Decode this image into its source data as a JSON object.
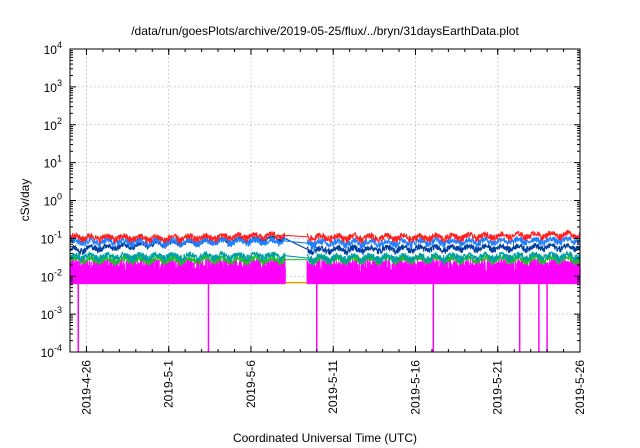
{
  "chart_data": {
    "type": "line",
    "title": "/data/run/goesPlots/archive/2019-05-25/flux/../bryn/31daysEarthData.plot",
    "xlabel": "Coordinated Universal Time (UTC)",
    "ylabel": "cSv/day",
    "yscale": "log",
    "ylim": [
      0.0001,
      10000
    ],
    "xlim": [
      "2019-04-25",
      "2019-05-26"
    ],
    "grid": true,
    "legend": "none",
    "y_ticks": [
      {
        "base": "10",
        "exp": "-4",
        "value": 0.0001
      },
      {
        "base": "10",
        "exp": "-3",
        "value": 0.001
      },
      {
        "base": "10",
        "exp": "-2",
        "value": 0.01
      },
      {
        "base": "10",
        "exp": "-1",
        "value": 0.1
      },
      {
        "base": "10",
        "exp": "0",
        "value": 1
      },
      {
        "base": "10",
        "exp": "1",
        "value": 10
      },
      {
        "base": "10",
        "exp": "2",
        "value": 100
      },
      {
        "base": "10",
        "exp": "3",
        "value": 1000
      },
      {
        "base": "10",
        "exp": "4",
        "value": 10000
      }
    ],
    "x_ticks": [
      {
        "label": "2019-4-26",
        "date": "2019-04-26"
      },
      {
        "label": "2019-5-1",
        "date": "2019-05-01"
      },
      {
        "label": "2019-5-6",
        "date": "2019-05-06"
      },
      {
        "label": "2019-5-11",
        "date": "2019-05-11"
      },
      {
        "label": "2019-5-16",
        "date": "2019-05-16"
      },
      {
        "label": "2019-5-21",
        "date": "2019-05-21"
      },
      {
        "label": "2019-5-26",
        "date": "2019-05-26"
      }
    ],
    "data_gap": [
      "2019-05-08T02:00",
      "2019-05-09T10:00"
    ],
    "series": [
      {
        "color": "#ff2020",
        "baseline": 0.105,
        "amplitude": 0.025,
        "points": [
          [
            "2019-04-25T00:00",
            0.11
          ],
          [
            "2019-05-01T00:00",
            0.1
          ],
          [
            "2019-05-08T01:00",
            0.12
          ],
          [
            "2019-05-09T11:00",
            0.11
          ],
          [
            "2019-05-16T00:00",
            0.105
          ],
          [
            "2019-05-26T00:00",
            0.13
          ]
        ]
      },
      {
        "color": "#2080ff",
        "baseline": 0.075,
        "amplitude": 0.02,
        "points": [
          [
            "2019-04-25T00:00",
            0.08
          ],
          [
            "2019-05-08T01:00",
            0.085
          ],
          [
            "2019-05-09T11:00",
            0.075
          ],
          [
            "2019-05-26T00:00",
            0.09
          ]
        ]
      },
      {
        "color": "#0040a0",
        "baseline": 0.05,
        "amplitude": 0.012,
        "points": [
          [
            "2019-04-25T00:00",
            0.05
          ],
          [
            "2019-05-08T01:00",
            0.1
          ],
          [
            "2019-05-09T11:00",
            0.05
          ],
          [
            "2019-05-26T00:00",
            0.06
          ]
        ]
      },
      {
        "color": "#00a0a0",
        "baseline": 0.033,
        "amplitude": 0.008,
        "points": [
          [
            "2019-04-25T00:00",
            0.033
          ],
          [
            "2019-05-08T01:00",
            0.035
          ],
          [
            "2019-05-09T11:00",
            0.03
          ],
          [
            "2019-05-26T00:00",
            0.035
          ]
        ]
      },
      {
        "color": "#20c020",
        "baseline": 0.027,
        "amplitude": 0.006,
        "points": [
          [
            "2019-04-25T00:00",
            0.027
          ],
          [
            "2019-05-26T00:00",
            0.028
          ]
        ]
      },
      {
        "color": "#ff00ff",
        "baseline": 0.012,
        "low": 0.0062,
        "high": 0.03,
        "dropouts": [
          "2019-04-25T12:00",
          "2019-05-03T10:00",
          "2019-05-10T00:00",
          "2019-05-17T02:00",
          "2019-05-22T08:00",
          "2019-05-23T12:00",
          "2019-05-24T00:00"
        ],
        "dropout_value": 0.0001
      },
      {
        "color": "#e0a000",
        "baseline": 0.0068,
        "amplitude": 0.0003,
        "points": [
          [
            "2019-05-08T02:00",
            0.0068
          ],
          [
            "2019-05-09T10:00",
            0.0068
          ]
        ]
      }
    ]
  }
}
